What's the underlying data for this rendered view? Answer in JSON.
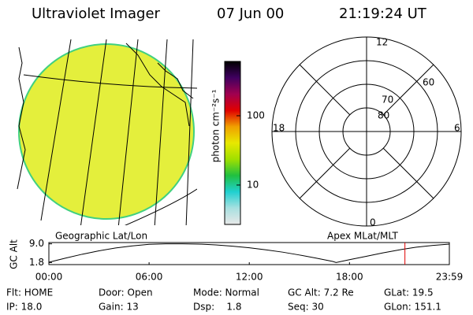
{
  "header": {
    "title": "Ultraviolet Imager",
    "date": "07 Jun 00",
    "time": "21:19:24 UT"
  },
  "colorbar": {
    "label": "photon cm⁻²s⁻¹",
    "log": true,
    "lim": [
      2.7,
      608
    ],
    "ticks": [
      10,
      100
    ],
    "colors": [
      "#e8e8e8",
      "#a8e0e0",
      "#20d0d0",
      "#20c040",
      "#a0e000",
      "#e8e800",
      "#f0a000",
      "#e00000",
      "#a00050",
      "#400060",
      "#000000"
    ]
  },
  "polar": {
    "labels": {
      "top": "12",
      "bottom": "0",
      "left": "18",
      "right": "6"
    },
    "rings": [
      "80",
      "70",
      "60"
    ]
  },
  "altitude_plot": {
    "left_label": "Geographic Lat/Lon",
    "right_label": "Apex MLat/MLT",
    "y_label": "GC Alt",
    "x": [
      0,
      1,
      2,
      3,
      4,
      5,
      6,
      7,
      8,
      9,
      10,
      11,
      12,
      13,
      14,
      15,
      16,
      17,
      17.2,
      18,
      19,
      20,
      21,
      22,
      23,
      23.98
    ],
    "values": [
      1.9,
      3.5,
      5.0,
      6.3,
      7.4,
      8.2,
      8.8,
      9.0,
      9.0,
      8.9,
      8.6,
      8.1,
      7.5,
      6.7,
      5.8,
      4.7,
      3.5,
      2.2,
      1.8,
      2.9,
      4.2,
      5.5,
      6.7,
      7.7,
      8.4,
      8.9
    ],
    "xlim": [
      0,
      23.98
    ],
    "ylim": [
      1.0,
      9.5
    ],
    "xticks": [
      {
        "value": 0,
        "label": "00:00"
      },
      {
        "value": 6,
        "label": "06:00"
      },
      {
        "value": 12,
        "label": "12:00"
      },
      {
        "value": 18,
        "label": "18:00"
      },
      {
        "value": 23.98,
        "label": "23:59"
      }
    ],
    "yticks": [
      {
        "value": 1.8,
        "label": "1.8"
      },
      {
        "value": 9.0,
        "label": "9.0"
      }
    ],
    "current_time": 21.32,
    "line_color": "#000000",
    "marker_color": "#e00000"
  },
  "footer": {
    "rows": [
      [
        "Flt: HOME",
        "Door: Open",
        "Mode: Normal",
        "GC Alt: 7.2 Re",
        "GLat: 19.5"
      ],
      [
        "IP: 18.0",
        "Gain: 13",
        "Dsp:    1.8",
        "Seq: 30",
        "GLon: 151.1"
      ]
    ]
  }
}
